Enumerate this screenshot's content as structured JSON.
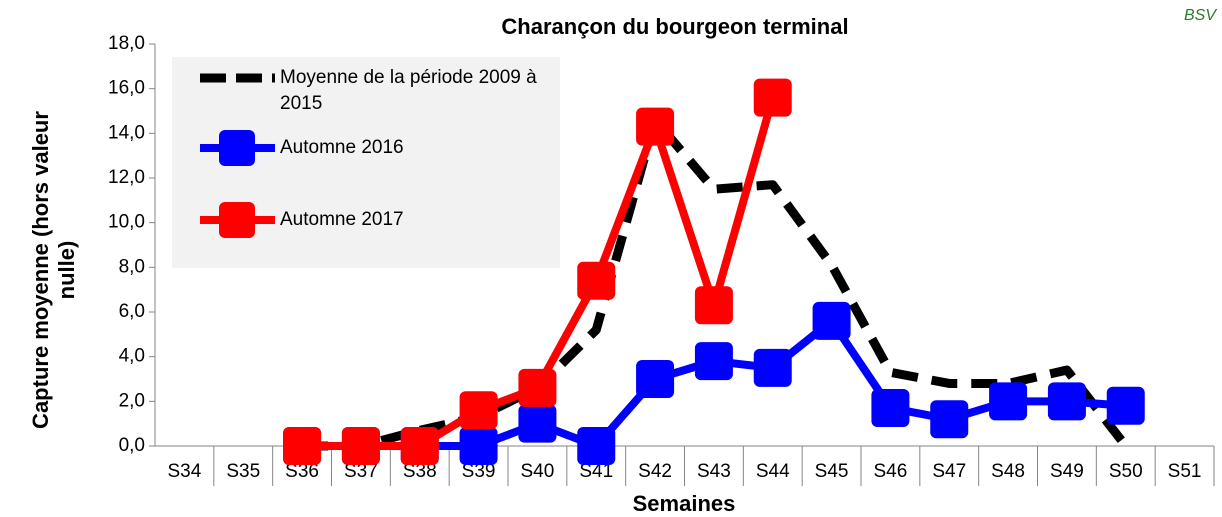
{
  "chart_data": {
    "type": "line",
    "title": "Charançon du bourgeon terminal",
    "logo": "BSV",
    "x_label": "Semaines",
    "y_label": [
      "Capture moyenne (hors valeur",
      "nulle)"
    ],
    "categories": [
      "S34",
      "S35",
      "S36",
      "S37",
      "S38",
      "S39",
      "S40",
      "S41",
      "S42",
      "S43",
      "S44",
      "S45",
      "S46",
      "S47",
      "S48",
      "S49",
      "S50",
      "S51"
    ],
    "ylim": [
      0,
      18
    ],
    "yticks": [
      {
        "value": 0,
        "label": "0,0"
      },
      {
        "value": 2,
        "label": "2,0"
      },
      {
        "value": 4,
        "label": "4,0"
      },
      {
        "value": 6,
        "label": "6,0"
      },
      {
        "value": 8,
        "label": "8,0"
      },
      {
        "value": 10,
        "label": "10,0"
      },
      {
        "value": 12,
        "label": "12,0"
      },
      {
        "value": 14,
        "label": "14,0"
      },
      {
        "value": 16,
        "label": "16,0"
      },
      {
        "value": 18,
        "label": "18,0"
      }
    ],
    "series": [
      {
        "name": "Moyenne de la période 2009 à 2015",
        "color": "#000000",
        "dashed": true,
        "marker": false,
        "values": [
          null,
          null,
          0,
          0,
          0.7,
          1.3,
          2.6,
          5.2,
          14.6,
          11.5,
          11.7,
          8.1,
          3.3,
          2.8,
          2.8,
          3.4,
          0,
          null
        ]
      },
      {
        "name": "Automne 2016",
        "color": "#0000ff",
        "dashed": false,
        "marker": true,
        "values": [
          null,
          null,
          0,
          0,
          0,
          0,
          1.0,
          0,
          3.0,
          3.8,
          3.5,
          5.6,
          1.7,
          1.2,
          2.0,
          2.0,
          1.8,
          null
        ]
      },
      {
        "name": "Automne 2017",
        "color": "#ff0000",
        "dashed": false,
        "marker": true,
        "values": [
          null,
          null,
          0,
          0,
          0,
          1.6,
          2.6,
          7.4,
          14.3,
          6.3,
          15.6,
          null,
          null,
          null,
          null,
          null,
          null,
          null
        ]
      }
    ]
  }
}
